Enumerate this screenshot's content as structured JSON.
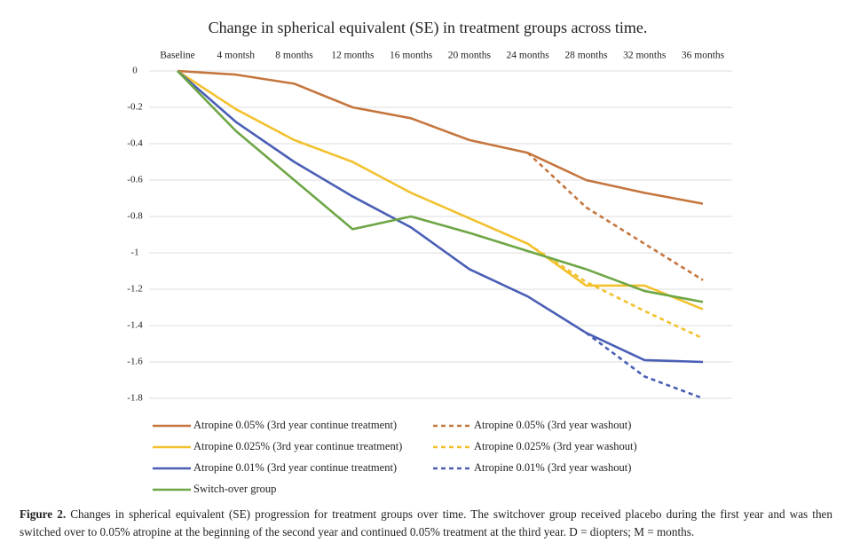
{
  "chart_data": {
    "type": "line",
    "title": "Change in spherical equivalent (SE) in treatment groups across time.",
    "categories": [
      "Baseline",
      "4 montsh",
      "8 months",
      "12 months",
      "16 months",
      "20 months",
      "24 months",
      "28 months",
      "32 months",
      "36 months"
    ],
    "ylim": [
      -1.8,
      0
    ],
    "yticks": [
      0,
      -0.2,
      -0.4,
      -0.6,
      -0.8,
      -1,
      -1.2,
      -1.4,
      -1.6,
      -1.8
    ],
    "grid": true,
    "series": [
      {
        "name": "Atropine 0.05% (3rd year continue treatment)",
        "color": "#c5763e",
        "dashed": false,
        "values": [
          0,
          -0.02,
          -0.07,
          -0.2,
          -0.26,
          -0.38,
          -0.45,
          -0.6,
          -0.67,
          -0.73
        ]
      },
      {
        "name": "Atropine 0.05% (3rd year washout)",
        "color": "#c5763e",
        "dashed": true,
        "values": [
          null,
          null,
          null,
          null,
          null,
          null,
          -0.45,
          -0.75,
          -0.95,
          -1.15
        ]
      },
      {
        "name": "Atropine 0.025% (3rd year continue treatment)",
        "color": "#f2c12e",
        "dashed": false,
        "values": [
          0,
          -0.21,
          -0.38,
          -0.5,
          -0.67,
          -0.81,
          -0.95,
          -1.18,
          -1.18,
          -1.31
        ]
      },
      {
        "name": "Atropine 0.025% (3rd year washout)",
        "color": "#f2c12e",
        "dashed": true,
        "values": [
          null,
          null,
          null,
          null,
          null,
          null,
          -0.95,
          -1.16,
          -1.32,
          -1.47
        ]
      },
      {
        "name": "Atropine 0.01% (3rd year continue treatment)",
        "color": "#4a5fb5",
        "dashed": false,
        "values": [
          0,
          -0.28,
          -0.5,
          -0.69,
          -0.86,
          -1.09,
          -1.24,
          -1.44,
          -1.59,
          -1.6
        ]
      },
      {
        "name": "Atropine 0.01% (3rd year washout)",
        "color": "#4a5fb5",
        "dashed": true,
        "values": [
          null,
          null,
          null,
          null,
          null,
          null,
          null,
          -1.44,
          -1.68,
          -1.8
        ]
      },
      {
        "name": "Switch-over group",
        "color": "#6ea646",
        "dashed": false,
        "values": [
          0,
          -0.33,
          -0.6,
          -0.87,
          -0.8,
          -0.89,
          -0.99,
          -1.09,
          -1.21,
          -1.27
        ]
      }
    ]
  },
  "caption": {
    "label": "Figure 2.",
    "text": "Changes in spherical equivalent (SE) progression for treatment groups over time. The switchover group received placebo during the first year and was then switched over to 0.05% atropine at the beginning of the second year and continued 0.05% treatment at the third year. D = diopters; M = months."
  }
}
